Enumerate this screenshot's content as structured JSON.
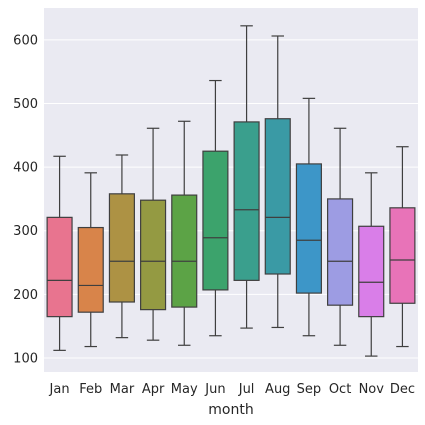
{
  "chart_data": {
    "type": "box",
    "xlabel": "month",
    "ylabel": "",
    "ylim": [
      78,
      650
    ],
    "yticks": [
      100,
      200,
      300,
      400,
      500,
      600
    ],
    "grid": true,
    "background": "#eaeaf2",
    "categories": [
      "Jan",
      "Feb",
      "Mar",
      "Apr",
      "May",
      "Jun",
      "Jul",
      "Aug",
      "Sep",
      "Oct",
      "Nov",
      "Dec"
    ],
    "boxes": [
      {
        "category": "Jan",
        "whislo": 112,
        "q1": 165,
        "med": 222,
        "q3": 321,
        "whishi": 417,
        "color": "#e8748f"
      },
      {
        "category": "Feb",
        "whislo": 118,
        "q1": 172,
        "med": 214,
        "q3": 305,
        "whishi": 391,
        "color": "#d8844a"
      },
      {
        "category": "Mar",
        "whislo": 132,
        "q1": 188,
        "med": 252,
        "q3": 358,
        "whishi": 419,
        "color": "#ad9244"
      },
      {
        "category": "Apr",
        "whislo": 128,
        "q1": 176,
        "med": 252,
        "q3": 348,
        "whishi": 461,
        "color": "#949a42"
      },
      {
        "category": "May",
        "whislo": 120,
        "q1": 180,
        "med": 252,
        "q3": 356,
        "whishi": 472,
        "color": "#5ca346"
      },
      {
        "category": "Jun",
        "whislo": 135,
        "q1": 207,
        "med": 289,
        "q3": 425,
        "whishi": 536,
        "color": "#3ca36c"
      },
      {
        "category": "Jul",
        "whislo": 147,
        "q1": 222,
        "med": 333,
        "q3": 471,
        "whishi": 622,
        "color": "#3a9f8d"
      },
      {
        "category": "Aug",
        "whislo": 148,
        "q1": 232,
        "med": 321,
        "q3": 476,
        "whishi": 606,
        "color": "#3a9aa5"
      },
      {
        "category": "Sep",
        "whislo": 135,
        "q1": 202,
        "med": 285,
        "q3": 405,
        "whishi": 508,
        "color": "#3d96c8"
      },
      {
        "category": "Oct",
        "whislo": 120,
        "q1": 183,
        "med": 252,
        "q3": 350,
        "whishi": 461,
        "color": "#9d9ce3"
      },
      {
        "category": "Nov",
        "whislo": 103,
        "q1": 165,
        "med": 219,
        "q3": 307,
        "whishi": 391,
        "color": "#d97ee8"
      },
      {
        "category": "Dec",
        "whislo": 118,
        "q1": 186,
        "med": 254,
        "q3": 336,
        "whishi": 432,
        "color": "#e873b8"
      }
    ]
  }
}
